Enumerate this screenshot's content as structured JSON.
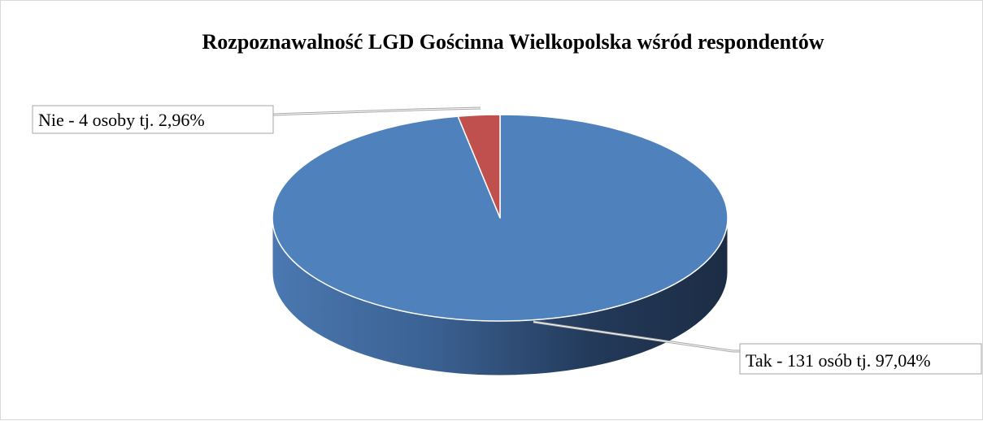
{
  "chart_data": {
    "type": "pie",
    "style": "3d",
    "title": "Rozpoznawalność LGD Gościnna Wielkopolska wśród respondentów",
    "slices": [
      {
        "category": "Tak",
        "count": 131,
        "percent": 97.04,
        "label": "Tak - 131 osób tj. 97,04%",
        "color": "#4f81bd",
        "side_color_light": "#4a78b0",
        "side_color_dark": "#1c2c44"
      },
      {
        "category": "Nie",
        "count": 4,
        "percent": 2.96,
        "label": "Nie - 4 osoby tj. 2,96%",
        "color": "#c0504d"
      }
    ],
    "legend": "none",
    "data_labels": "outside with leader lines"
  }
}
